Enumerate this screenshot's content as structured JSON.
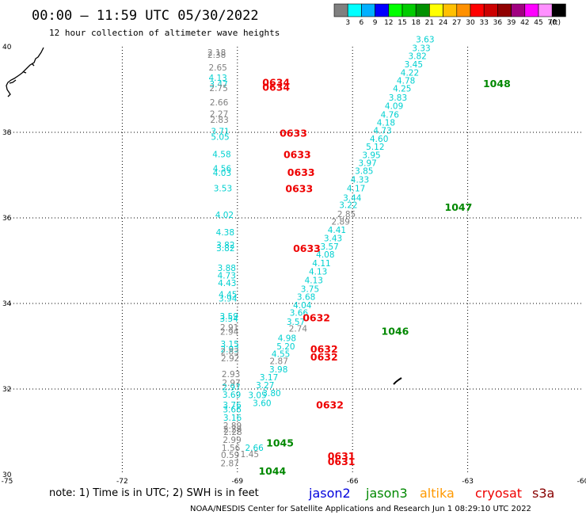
{
  "header": {
    "title": "00:00 – 11:59 UTC 05/30/2022",
    "subtitle": "12 hour collection of altimeter wave heights"
  },
  "scale": {
    "colors": [
      "#808080",
      "#00ffff",
      "#00b0ff",
      "#0000ff",
      "#00ff00",
      "#00cc00",
      "#009000",
      "#ffff00",
      "#ffc000",
      "#ff9000",
      "#ff0000",
      "#cc0000",
      "#900000",
      "#a00080",
      "#ff00ff",
      "#ff90ff",
      "#000000"
    ],
    "labels": [
      "3",
      "6",
      "9",
      "12",
      "15",
      "18",
      "21",
      "24",
      "27",
      "30",
      "33",
      "36",
      "39",
      "42",
      "45",
      "70",
      "(ft)"
    ]
  },
  "axes": {
    "lon_labels": [
      "-75",
      "-72",
      "-69",
      "-66",
      "-63",
      "-60"
    ],
    "lat_labels": [
      "40",
      "38",
      "36",
      "34",
      "32",
      "30"
    ]
  },
  "colors": {
    "jason2": "#0000dd",
    "jason3": "#008800",
    "altika": "#ff9900",
    "cryosat": "#ee0000",
    "s3a": "#880000",
    "sentinel_swh": "#00d0d0",
    "gray_swh": "#808080"
  },
  "observations": [
    {
      "lon": -69.78,
      "lat": 39.8,
      "v": "2.18",
      "c": "gray"
    },
    {
      "lon": -69.78,
      "lat": 39.74,
      "v": "2.38",
      "c": "gray"
    },
    {
      "lon": -69.75,
      "lat": 39.44,
      "v": "2.65",
      "c": "gray"
    },
    {
      "lon": -69.75,
      "lat": 39.2,
      "v": "4.13",
      "c": "cyan"
    },
    {
      "lon": -69.73,
      "lat": 39.06,
      "v": "3.47",
      "c": "cyan"
    },
    {
      "lon": -69.73,
      "lat": 38.96,
      "v": "2.75",
      "c": "gray"
    },
    {
      "lon": -69.72,
      "lat": 38.63,
      "v": "2.66",
      "c": "gray"
    },
    {
      "lon": -69.72,
      "lat": 38.36,
      "v": "2.27",
      "c": "gray"
    },
    {
      "lon": -69.71,
      "lat": 38.22,
      "v": "2.83",
      "c": "gray"
    },
    {
      "lon": -69.69,
      "lat": 37.95,
      "v": "3.71",
      "c": "cyan"
    },
    {
      "lon": -69.69,
      "lat": 37.82,
      "v": "5.05",
      "c": "cyan"
    },
    {
      "lon": -69.65,
      "lat": 37.42,
      "v": "4.58",
      "c": "cyan"
    },
    {
      "lon": -69.64,
      "lat": 37.08,
      "v": "4.56",
      "c": "cyan"
    },
    {
      "lon": -69.64,
      "lat": 36.98,
      "v": "4.03",
      "c": "cyan"
    },
    {
      "lon": -69.62,
      "lat": 36.62,
      "v": "3.53",
      "c": "cyan"
    },
    {
      "lon": -69.58,
      "lat": 36.0,
      "v": "4.02",
      "c": "cyan"
    },
    {
      "lon": -69.56,
      "lat": 35.59,
      "v": "4.38",
      "c": "cyan"
    },
    {
      "lon": -69.55,
      "lat": 35.3,
      "v": "3.82",
      "c": "cyan"
    },
    {
      "lon": -69.55,
      "lat": 35.22,
      "v": "3.82",
      "c": "cyan"
    },
    {
      "lon": -69.52,
      "lat": 34.76,
      "v": "3.88",
      "c": "cyan"
    },
    {
      "lon": -69.52,
      "lat": 34.58,
      "v": "4.73",
      "c": "cyan"
    },
    {
      "lon": -69.51,
      "lat": 34.41,
      "v": "4.43",
      "c": "cyan"
    },
    {
      "lon": -69.49,
      "lat": 34.14,
      "v": "4.45",
      "c": "cyan"
    },
    {
      "lon": -69.49,
      "lat": 34.05,
      "v": "3.94",
      "c": "cyan"
    },
    {
      "lon": -69.46,
      "lat": 33.63,
      "v": "3.59",
      "c": "cyan"
    },
    {
      "lon": -69.46,
      "lat": 33.57,
      "v": "3.54",
      "c": "cyan"
    },
    {
      "lon": -69.45,
      "lat": 33.37,
      "v": "2.91",
      "c": "gray"
    },
    {
      "lon": -69.45,
      "lat": 33.27,
      "v": "2.94",
      "c": "gray"
    },
    {
      "lon": -69.44,
      "lat": 32.98,
      "v": "3.15",
      "c": "cyan"
    },
    {
      "lon": -69.44,
      "lat": 32.86,
      "v": "2.93",
      "c": "cyan"
    },
    {
      "lon": -69.44,
      "lat": 32.81,
      "v": "2.83",
      "c": "gray"
    },
    {
      "lon": -69.43,
      "lat": 32.65,
      "v": "2.92",
      "c": "gray"
    },
    {
      "lon": -69.41,
      "lat": 32.28,
      "v": "2.93",
      "c": "gray"
    },
    {
      "lon": -69.4,
      "lat": 32.07,
      "v": "2.97",
      "c": "gray"
    },
    {
      "lon": -69.4,
      "lat": 31.97,
      "v": "2.97",
      "c": "cyan"
    },
    {
      "lon": -69.39,
      "lat": 31.8,
      "v": "3.69",
      "c": "cyan"
    },
    {
      "lon": -69.38,
      "lat": 31.56,
      "v": "3.76",
      "c": "cyan"
    },
    {
      "lon": -69.38,
      "lat": 31.45,
      "v": "3.66",
      "c": "cyan"
    },
    {
      "lon": -69.37,
      "lat": 31.26,
      "v": "3.16",
      "c": "cyan"
    },
    {
      "lon": -69.37,
      "lat": 31.07,
      "v": "2.89",
      "c": "gray"
    },
    {
      "lon": -69.37,
      "lat": 30.99,
      "v": "2.29",
      "c": "gray"
    },
    {
      "lon": -69.36,
      "lat": 30.93,
      "v": "2.28",
      "c": "gray"
    },
    {
      "lon": -69.38,
      "lat": 30.74,
      "v": "2.99",
      "c": "gray"
    },
    {
      "lon": -69.41,
      "lat": 30.56,
      "v": "1.56",
      "c": "gray"
    },
    {
      "lon": -69.43,
      "lat": 30.39,
      "v": "0.59",
      "c": "gray"
    },
    {
      "lon": -69.44,
      "lat": 30.19,
      "v": "2.87",
      "c": "gray"
    },
    {
      "lon": -68.8,
      "lat": 30.56,
      "v": "2.66",
      "c": "cyan"
    },
    {
      "lon": -68.92,
      "lat": 30.41,
      "v": "1.45",
      "c": "gray"
    },
    {
      "lon": -68.6,
      "lat": 31.6,
      "v": "3.60",
      "c": "cyan"
    },
    {
      "lon": -68.72,
      "lat": 31.79,
      "v": "3.05",
      "c": "cyan"
    },
    {
      "lon": -68.35,
      "lat": 31.83,
      "v": "3.80",
      "c": "cyan"
    },
    {
      "lon": -68.52,
      "lat": 32.02,
      "v": "3.27",
      "c": "cyan"
    },
    {
      "lon": -68.42,
      "lat": 32.2,
      "v": "3.17",
      "c": "cyan"
    },
    {
      "lon": -68.17,
      "lat": 32.39,
      "v": "3.98",
      "c": "cyan"
    },
    {
      "lon": -68.16,
      "lat": 32.58,
      "v": "2.87",
      "c": "gray"
    },
    {
      "lon": -68.11,
      "lat": 32.75,
      "v": "4.55",
      "c": "cyan"
    },
    {
      "lon": -67.98,
      "lat": 32.93,
      "v": "5.20",
      "c": "cyan"
    },
    {
      "lon": -67.95,
      "lat": 33.12,
      "v": "4.98",
      "c": "cyan"
    },
    {
      "lon": -67.66,
      "lat": 33.34,
      "v": "2.74",
      "c": "gray"
    },
    {
      "lon": -67.72,
      "lat": 33.5,
      "v": "3.57",
      "c": "cyan"
    },
    {
      "lon": -67.64,
      "lat": 33.71,
      "v": "3.66",
      "c": "cyan"
    },
    {
      "lon": -67.55,
      "lat": 33.89,
      "v": "4.04",
      "c": "cyan"
    },
    {
      "lon": -67.45,
      "lat": 34.08,
      "v": "3.68",
      "c": "cyan"
    },
    {
      "lon": -67.35,
      "lat": 34.27,
      "v": "3.75",
      "c": "cyan"
    },
    {
      "lon": -67.25,
      "lat": 34.47,
      "v": "4.13",
      "c": "cyan"
    },
    {
      "lon": -67.14,
      "lat": 34.68,
      "v": "4.13",
      "c": "cyan"
    },
    {
      "lon": -67.05,
      "lat": 34.87,
      "v": "4.11",
      "c": "cyan"
    },
    {
      "lon": -66.95,
      "lat": 35.07,
      "v": "4.08",
      "c": "cyan"
    },
    {
      "lon": -66.84,
      "lat": 35.26,
      "v": "3.57",
      "c": "cyan"
    },
    {
      "lon": -66.75,
      "lat": 35.45,
      "v": "3.43",
      "c": "cyan"
    },
    {
      "lon": -66.65,
      "lat": 35.65,
      "v": "4.41",
      "c": "cyan"
    },
    {
      "lon": -66.55,
      "lat": 35.84,
      "v": "2.89",
      "c": "gray"
    },
    {
      "lon": -66.4,
      "lat": 36.02,
      "v": "2.85",
      "c": "gray"
    },
    {
      "lon": -66.35,
      "lat": 36.23,
      "v": "3.22",
      "c": "cyan"
    },
    {
      "lon": -66.25,
      "lat": 36.4,
      "v": "3.44",
      "c": "cyan"
    },
    {
      "lon": -66.15,
      "lat": 36.62,
      "v": "4.17",
      "c": "cyan"
    },
    {
      "lon": -66.05,
      "lat": 36.82,
      "v": "4.33",
      "c": "cyan"
    },
    {
      "lon": -65.94,
      "lat": 37.03,
      "v": "3.85",
      "c": "cyan"
    },
    {
      "lon": -65.85,
      "lat": 37.21,
      "v": "3.97",
      "c": "cyan"
    },
    {
      "lon": -65.75,
      "lat": 37.4,
      "v": "3.95",
      "c": "cyan"
    },
    {
      "lon": -65.65,
      "lat": 37.59,
      "v": "5.12",
      "c": "cyan"
    },
    {
      "lon": -65.55,
      "lat": 37.78,
      "v": "4.60",
      "c": "cyan"
    },
    {
      "lon": -65.46,
      "lat": 37.97,
      "v": "4.73",
      "c": "cyan"
    },
    {
      "lon": -65.37,
      "lat": 38.16,
      "v": "4.18",
      "c": "cyan"
    },
    {
      "lon": -65.27,
      "lat": 38.34,
      "v": "4.76",
      "c": "cyan"
    },
    {
      "lon": -65.16,
      "lat": 38.55,
      "v": "4.09",
      "c": "cyan"
    },
    {
      "lon": -65.06,
      "lat": 38.74,
      "v": "3.83",
      "c": "cyan"
    },
    {
      "lon": -64.95,
      "lat": 38.95,
      "v": "4.25",
      "c": "cyan"
    },
    {
      "lon": -64.85,
      "lat": 39.14,
      "v": "4.78",
      "c": "cyan"
    },
    {
      "lon": -64.75,
      "lat": 39.32,
      "v": "4.22",
      "c": "cyan"
    },
    {
      "lon": -64.65,
      "lat": 39.52,
      "v": "3.45",
      "c": "cyan"
    },
    {
      "lon": -64.55,
      "lat": 39.71,
      "v": "3.82",
      "c": "cyan"
    },
    {
      "lon": -64.45,
      "lat": 39.9,
      "v": "3.33",
      "c": "cyan"
    },
    {
      "lon": -64.35,
      "lat": 40.1,
      "v": "3.63",
      "c": "cyan"
    }
  ],
  "pass_labels": [
    {
      "lon": -68.35,
      "lat": 39.08,
      "t": "0634",
      "c": "red"
    },
    {
      "lon": -68.35,
      "lat": 38.97,
      "t": "0634",
      "c": "red"
    },
    {
      "lon": -67.9,
      "lat": 37.9,
      "t": "0633",
      "c": "red"
    },
    {
      "lon": -67.8,
      "lat": 37.4,
      "t": "0633",
      "c": "red"
    },
    {
      "lon": -67.7,
      "lat": 36.98,
      "t": "0633",
      "c": "red"
    },
    {
      "lon": -67.75,
      "lat": 36.6,
      "t": "0633",
      "c": "red"
    },
    {
      "lon": -67.55,
      "lat": 35.2,
      "t": "0633",
      "c": "red"
    },
    {
      "lon": -67.3,
      "lat": 33.58,
      "t": "0632",
      "c": "red"
    },
    {
      "lon": -67.1,
      "lat": 32.85,
      "t": "0632",
      "c": "red"
    },
    {
      "lon": -67.1,
      "lat": 32.67,
      "t": "0632",
      "c": "red"
    },
    {
      "lon": -66.95,
      "lat": 31.55,
      "t": "0632",
      "c": "red"
    },
    {
      "lon": -66.65,
      "lat": 30.35,
      "t": "0631",
      "c": "red"
    },
    {
      "lon": -66.65,
      "lat": 30.22,
      "t": "0631",
      "c": "red"
    },
    {
      "lon": -68.25,
      "lat": 30.66,
      "t": "1045",
      "c": "green"
    },
    {
      "lon": -68.45,
      "lat": 30.0,
      "t": "1044",
      "c": "green"
    },
    {
      "lon": -65.25,
      "lat": 33.27,
      "t": "1046",
      "c": "green"
    },
    {
      "lon": -63.6,
      "lat": 36.17,
      "t": "1047",
      "c": "green"
    },
    {
      "lon": -62.6,
      "lat": 39.06,
      "t": "1048",
      "c": "green"
    }
  ],
  "note": "note:  1) Time is in UTC;  2) SWH is in feet",
  "legend": [
    {
      "label": "jason2",
      "color": "#0000dd"
    },
    {
      "label": "jason3",
      "color": "#008800"
    },
    {
      "label": "altika",
      "color": "#ff9900"
    },
    {
      "label": "cryosat",
      "color": "#ee0000"
    },
    {
      "label": "s3a",
      "color": "#880000"
    }
  ],
  "credit": "NOAA/NESDIS Center for Satellite Applications and Research   Jun  1 08:29:10 UTC 2022"
}
